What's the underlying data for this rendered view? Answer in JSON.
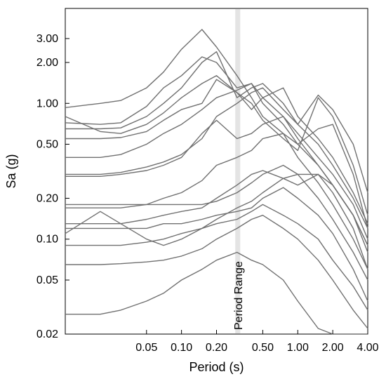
{
  "chart_data": {
    "type": "line",
    "title": "",
    "xlabel": "Period (s)",
    "ylabel": "Sa (g)",
    "x_scale": "log",
    "y_scale": "log",
    "xlim": [
      0.01,
      4.0
    ],
    "ylim": [
      0.02,
      5.0
    ],
    "x_ticks": [
      0.05,
      0.1,
      0.2,
      0.5,
      1.0,
      2.0,
      4.0
    ],
    "x_tick_labels": [
      "0.05",
      "0.10",
      "0.20",
      "0.50",
      "1.00",
      "2.00",
      "4.00"
    ],
    "y_ticks": [
      0.02,
      0.05,
      0.1,
      0.2,
      0.5,
      1.0,
      2.0,
      3.0
    ],
    "y_tick_labels": [
      "0.02",
      "0.05",
      "0.10",
      "0.20",
      "0.50",
      "1.00",
      "2.00",
      "3.00"
    ],
    "grid": false,
    "line_color": "#707070",
    "band_color": "#e4e4e4",
    "annotation": {
      "text": "Period Range",
      "band_x": [
        0.29,
        0.32
      ]
    },
    "x": [
      0.01,
      0.02,
      0.03,
      0.05,
      0.07,
      0.1,
      0.15,
      0.2,
      0.3,
      0.4,
      0.5,
      0.75,
      1.0,
      1.5,
      2.0,
      3.0,
      4.0
    ],
    "series": [
      {
        "values": [
          0.93,
          1.0,
          1.05,
          1.3,
          1.7,
          2.5,
          3.5,
          2.6,
          1.6,
          1.1,
          0.8,
          0.6,
          0.4,
          0.26,
          0.18,
          0.1,
          0.06
        ]
      },
      {
        "values": [
          0.72,
          0.7,
          0.72,
          0.95,
          1.3,
          1.6,
          2.2,
          2.0,
          1.3,
          1.4,
          1.0,
          0.7,
          0.5,
          0.35,
          0.25,
          0.15,
          0.09
        ]
      },
      {
        "values": [
          0.65,
          0.65,
          0.66,
          0.8,
          1.0,
          1.3,
          2.0,
          2.4,
          1.1,
          1.3,
          1.4,
          1.0,
          0.7,
          0.5,
          0.35,
          0.2,
          0.12
        ]
      },
      {
        "values": [
          0.8,
          0.62,
          0.6,
          0.7,
          0.85,
          1.1,
          1.4,
          1.6,
          1.2,
          0.9,
          1.1,
          1.3,
          0.8,
          0.55,
          0.4,
          0.22,
          0.13
        ]
      },
      {
        "values": [
          0.55,
          0.55,
          0.56,
          0.62,
          0.75,
          0.9,
          1.0,
          1.5,
          1.2,
          1.0,
          0.75,
          0.55,
          0.45,
          1.1,
          0.8,
          0.35,
          0.15
        ]
      },
      {
        "values": [
          0.4,
          0.4,
          0.42,
          0.5,
          0.6,
          0.7,
          0.9,
          1.1,
          1.25,
          1.4,
          1.1,
          0.8,
          0.6,
          0.4,
          0.3,
          0.18,
          0.1
        ]
      },
      {
        "values": [
          0.3,
          0.3,
          0.31,
          0.34,
          0.37,
          0.42,
          0.55,
          0.8,
          1.0,
          1.2,
          1.3,
          0.9,
          0.7,
          1.15,
          0.9,
          0.5,
          0.22
        ]
      },
      {
        "values": [
          0.29,
          0.29,
          0.3,
          0.32,
          0.35,
          0.4,
          0.6,
          0.75,
          0.55,
          0.6,
          0.7,
          0.8,
          0.55,
          0.35,
          0.25,
          0.15,
          0.09
        ]
      },
      {
        "values": [
          0.17,
          0.17,
          0.17,
          0.18,
          0.2,
          0.22,
          0.27,
          0.35,
          0.4,
          0.45,
          0.55,
          0.6,
          0.5,
          0.65,
          0.7,
          0.3,
          0.12
        ]
      },
      {
        "values": [
          0.18,
          0.18,
          0.18,
          0.18,
          0.18,
          0.18,
          0.18,
          0.19,
          0.22,
          0.26,
          0.3,
          0.35,
          0.3,
          0.3,
          0.25,
          0.15,
          0.08
        ]
      },
      {
        "values": [
          0.13,
          0.13,
          0.13,
          0.14,
          0.15,
          0.16,
          0.17,
          0.2,
          0.25,
          0.3,
          0.32,
          0.28,
          0.25,
          0.3,
          0.22,
          0.12,
          0.06
        ]
      },
      {
        "values": [
          0.11,
          0.16,
          0.13,
          0.1,
          0.09,
          0.1,
          0.12,
          0.14,
          0.17,
          0.19,
          0.22,
          0.28,
          0.3,
          0.2,
          0.14,
          0.08,
          0.05
        ]
      },
      {
        "values": [
          0.12,
          0.12,
          0.12,
          0.12,
          0.13,
          0.13,
          0.14,
          0.15,
          0.16,
          0.17,
          0.2,
          0.24,
          0.2,
          0.15,
          0.11,
          0.06,
          0.035
        ]
      },
      {
        "values": [
          0.09,
          0.09,
          0.09,
          0.095,
          0.1,
          0.11,
          0.12,
          0.13,
          0.14,
          0.16,
          0.18,
          0.15,
          0.13,
          0.1,
          0.07,
          0.045,
          0.03
        ]
      },
      {
        "values": [
          0.065,
          0.065,
          0.066,
          0.068,
          0.07,
          0.075,
          0.085,
          0.1,
          0.12,
          0.14,
          0.15,
          0.12,
          0.1,
          0.07,
          0.05,
          0.03,
          0.022
        ]
      },
      {
        "values": [
          0.028,
          0.028,
          0.03,
          0.035,
          0.04,
          0.05,
          0.06,
          0.07,
          0.08,
          0.07,
          0.065,
          0.05,
          0.035,
          0.022,
          0.02,
          0.02,
          0.02
        ]
      }
    ]
  }
}
